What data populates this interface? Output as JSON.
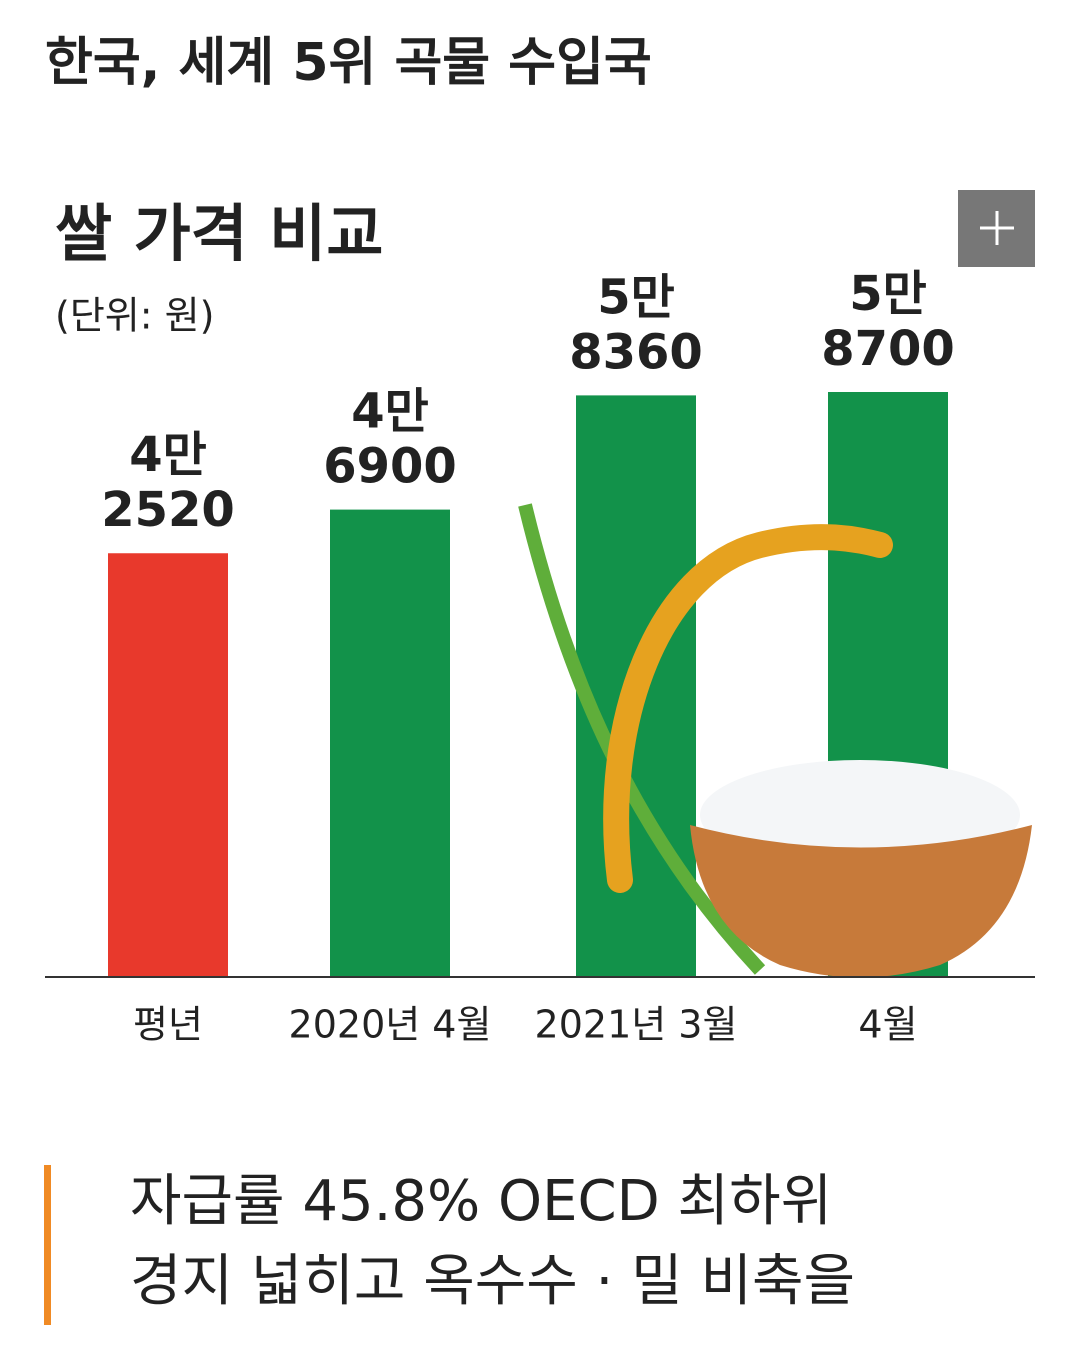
{
  "header": {
    "title": "한국, 세계 5위 곡물 수입국"
  },
  "chart_data": {
    "type": "bar",
    "title": "쌀 가격 비교",
    "unit_label": "(단위: 원)",
    "categories": [
      "평년",
      "2020년 4월",
      "2021년 3월",
      "4월"
    ],
    "values": [
      42520,
      46900,
      58360,
      58700
    ],
    "value_labels": [
      [
        "4만",
        "2520"
      ],
      [
        "4만",
        "6900"
      ],
      [
        "5만",
        "8360"
      ],
      [
        "5만",
        "8700"
      ]
    ],
    "colors": [
      "#e8392c",
      "#12924a",
      "#12924a",
      "#12924a"
    ]
  },
  "subheading": {
    "lines": [
      "자급률 45.8% OECD 최하위",
      "경지 넓히고 옥수수 · 밀 비축을"
    ]
  }
}
